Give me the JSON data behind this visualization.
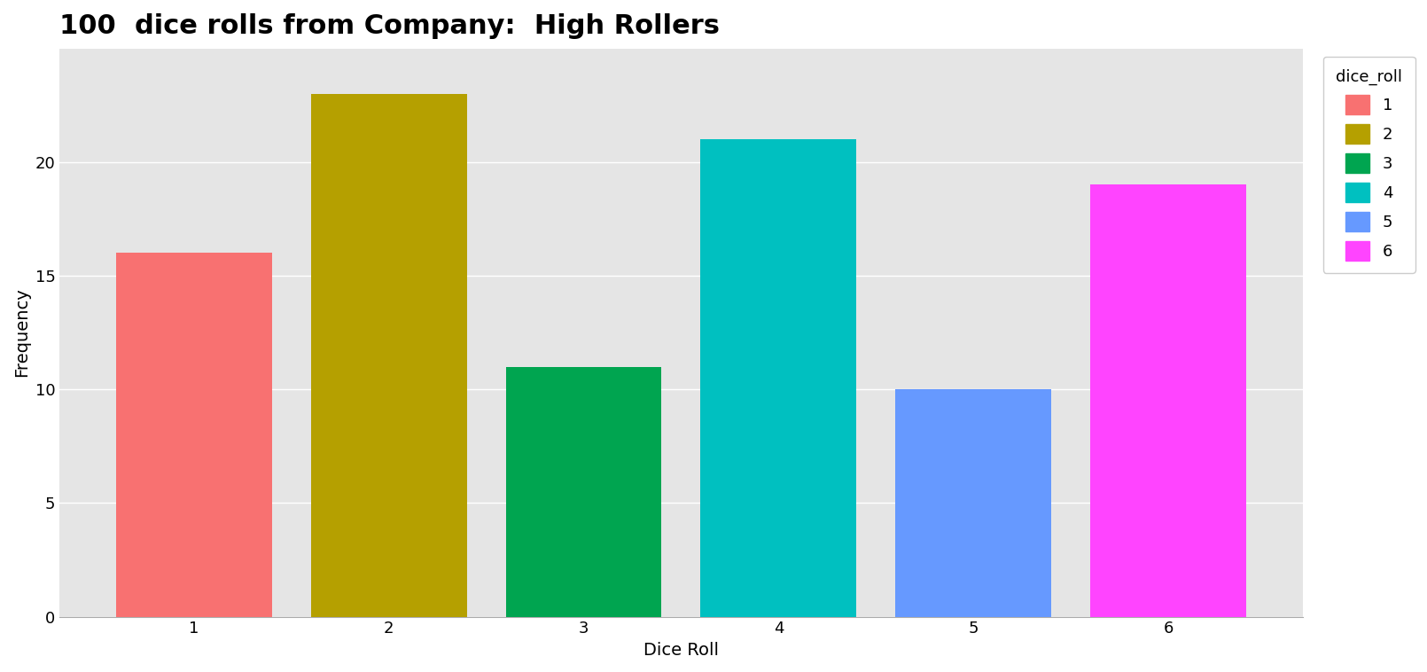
{
  "title": "100  dice rolls from Company:  High Rollers",
  "xlabel": "Dice Roll",
  "ylabel": "Frequency",
  "categories": [
    1,
    2,
    3,
    4,
    5,
    6
  ],
  "values": [
    16,
    23,
    11,
    21,
    10,
    19
  ],
  "bar_colors": [
    "#F87171",
    "#B5A000",
    "#00A550",
    "#00C0C0",
    "#6699FF",
    "#FF44FF"
  ],
  "legend_title": "dice_roll",
  "legend_labels": [
    "1",
    "2",
    "3",
    "4",
    "5",
    "6"
  ],
  "ylim": [
    0,
    25
  ],
  "yticks": [
    0,
    5,
    10,
    15,
    20
  ],
  "axes_background_color": "#E5E5E5",
  "figure_background_color": "#FFFFFF",
  "grid_color": "#FFFFFF",
  "title_fontsize": 22,
  "axis_label_fontsize": 14,
  "tick_fontsize": 13,
  "legend_fontsize": 13
}
